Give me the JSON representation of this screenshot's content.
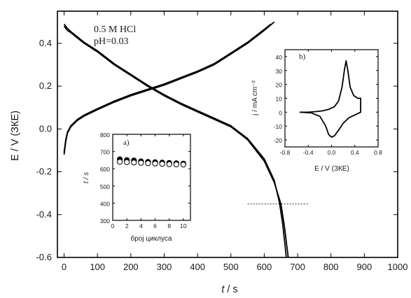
{
  "chart_data": [
    {
      "id": "main",
      "type": "line",
      "xlabel": "t / s",
      "ylabel": "E / V (ЗКЕ)",
      "xlim": [
        -20,
        1000
      ],
      "ylim": [
        -0.6,
        0.55
      ],
      "xticks": [
        0,
        100,
        200,
        300,
        400,
        500,
        600,
        700,
        800,
        900,
        1000
      ],
      "yticks": [
        -0.6,
        -0.4,
        -0.2,
        0.0,
        0.2,
        0.4
      ],
      "ytick_labels": [
        "-0.6",
        "-0.4",
        "-0.2",
        "0.0",
        "0.2",
        "0.4"
      ],
      "annotations": [
        "0.5 M HCl",
        "pH=0.03"
      ],
      "reference_line": {
        "y": -0.35,
        "x": [
          550,
          735
        ],
        "style": "dotted"
      },
      "series": [
        {
          "x": [
            0,
            5,
            10,
            20,
            40,
            60,
            100,
            150,
            200,
            250,
            300,
            350,
            400,
            450,
            500,
            550,
            600,
            630
          ],
          "y": [
            -0.12,
            -0.06,
            -0.02,
            0.01,
            0.04,
            0.06,
            0.09,
            0.125,
            0.155,
            0.18,
            0.205,
            0.235,
            0.265,
            0.3,
            0.35,
            0.4,
            0.46,
            0.5
          ]
        },
        {
          "x": [
            0,
            5,
            10,
            20,
            40,
            60,
            100,
            150,
            200,
            250,
            300,
            350,
            400,
            450,
            500,
            550,
            600,
            620
          ],
          "y": [
            -0.11,
            -0.05,
            -0.015,
            0.015,
            0.045,
            0.065,
            0.095,
            0.13,
            0.16,
            0.185,
            0.21,
            0.24,
            0.27,
            0.305,
            0.355,
            0.405,
            0.465,
            0.49
          ]
        },
        {
          "x": [
            0,
            5,
            10,
            20,
            40,
            60,
            100,
            150,
            200,
            250,
            300,
            350,
            400,
            450,
            500,
            550,
            600,
            630,
            650,
            660,
            668,
            672
          ],
          "y": [
            0.48,
            0.47,
            0.46,
            0.45,
            0.425,
            0.4,
            0.36,
            0.3,
            0.25,
            0.2,
            0.155,
            0.115,
            0.08,
            0.045,
            0.01,
            -0.05,
            -0.15,
            -0.25,
            -0.35,
            -0.45,
            -0.55,
            -0.6
          ]
        },
        {
          "x": [
            0,
            5,
            10,
            20,
            40,
            60,
            100,
            150,
            200,
            250,
            300,
            350,
            400,
            450,
            500,
            550,
            600,
            630,
            645,
            655,
            662,
            666
          ],
          "y": [
            0.49,
            0.48,
            0.47,
            0.455,
            0.43,
            0.405,
            0.365,
            0.305,
            0.255,
            0.205,
            0.16,
            0.12,
            0.085,
            0.05,
            0.015,
            -0.045,
            -0.14,
            -0.24,
            -0.34,
            -0.44,
            -0.54,
            -0.6
          ]
        }
      ]
    },
    {
      "id": "inset_a",
      "type": "scatter",
      "panel_label": "a)",
      "xlabel": "број циклуса",
      "ylabel": "t / s",
      "xlim": [
        0,
        11
      ],
      "ylim": [
        300,
        800
      ],
      "xticks": [
        0,
        2,
        4,
        6,
        8,
        10
      ],
      "yticks": [
        300,
        400,
        500,
        600,
        700,
        800
      ],
      "series": [
        {
          "marker": "filled-circle",
          "x": [
            1,
            2,
            3,
            4,
            5,
            6,
            7,
            8,
            9,
            10
          ],
          "y": [
            655,
            650,
            648,
            643,
            640,
            638,
            636,
            634,
            632,
            630
          ]
        },
        {
          "marker": "open-circle",
          "x": [
            1,
            2,
            3,
            4,
            5,
            6,
            7,
            8,
            9,
            10
          ],
          "y": [
            640,
            638,
            636,
            634,
            632,
            630,
            628,
            626,
            625,
            624
          ]
        }
      ]
    },
    {
      "id": "inset_b",
      "type": "line",
      "panel_label": "b)",
      "xlabel": "E / V (ЗКЕ)",
      "ylabel": "j / mA cm⁻²",
      "xlim": [
        -0.8,
        0.8
      ],
      "ylim": [
        -25,
        45
      ],
      "xticks": [
        -0.8,
        -0.4,
        0.0,
        0.4,
        0.8
      ],
      "xtick_labels": [
        "-0.8",
        "-0.4",
        "0.0",
        "0.4",
        "0.8"
      ],
      "yticks": [
        -20,
        -10,
        0,
        10,
        20,
        30,
        40
      ],
      "series": [
        {
          "x": [
            -0.55,
            -0.4,
            -0.25,
            -0.15,
            -0.05,
            0.05,
            0.12,
            0.18,
            0.22,
            0.25,
            0.28,
            0.32,
            0.38,
            0.45,
            0.5,
            0.5,
            0.4,
            0.3,
            0.2,
            0.12,
            0.05,
            0.0,
            -0.05,
            -0.1,
            -0.2,
            -0.35,
            -0.55
          ],
          "y": [
            0,
            0,
            0.5,
            1,
            2,
            4,
            8,
            18,
            30,
            37,
            30,
            18,
            12,
            10,
            10,
            0,
            -2,
            -4,
            -8,
            -13,
            -17,
            -18,
            -16,
            -10,
            -3,
            -0.5,
            0
          ]
        }
      ]
    }
  ]
}
